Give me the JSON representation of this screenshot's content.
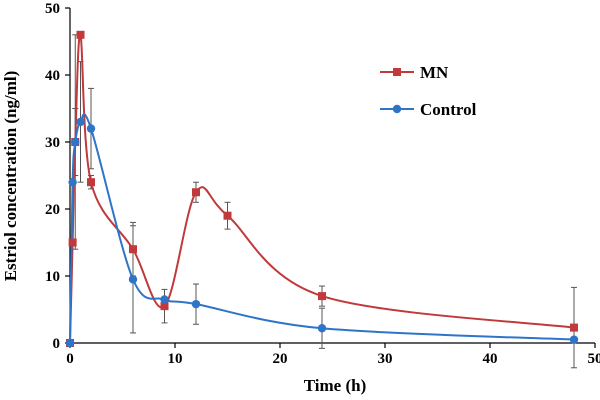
{
  "chart_data": {
    "type": "line",
    "title": "",
    "xlabel": "Time (h)",
    "ylabel": "Estriol concentration (ng/ml)",
    "xlim": [
      0,
      50
    ],
    "ylim": [
      0,
      50
    ],
    "x_ticks": [
      "0",
      "10",
      "20",
      "30",
      "40",
      "50"
    ],
    "y_ticks": [
      "0",
      "10",
      "20",
      "30",
      "40",
      "50"
    ],
    "grid": false,
    "legend_position": "top-right",
    "series": [
      {
        "name": "MN",
        "color": "#c0393b",
        "marker": "square",
        "x": [
          0,
          0.25,
          0.5,
          1,
          2,
          6,
          9,
          12,
          15,
          24,
          48
        ],
        "y": [
          0,
          15,
          30,
          46,
          24,
          14,
          5.5,
          22.5,
          19,
          7,
          2.3
        ],
        "error": [
          0,
          0,
          16,
          0,
          1,
          4,
          2.5,
          1.5,
          2,
          1.5,
          6
        ]
      },
      {
        "name": "Control",
        "color": "#2e75c8",
        "marker": "circle",
        "x": [
          0,
          0.25,
          0.5,
          1,
          2,
          6,
          9,
          12,
          24,
          48
        ],
        "y": [
          0,
          24,
          30,
          33,
          32,
          9.5,
          6.5,
          5.8,
          2.2,
          0.5
        ],
        "error": [
          0,
          0,
          5,
          9,
          6,
          8,
          0,
          3,
          3,
          0
        ]
      }
    ]
  }
}
